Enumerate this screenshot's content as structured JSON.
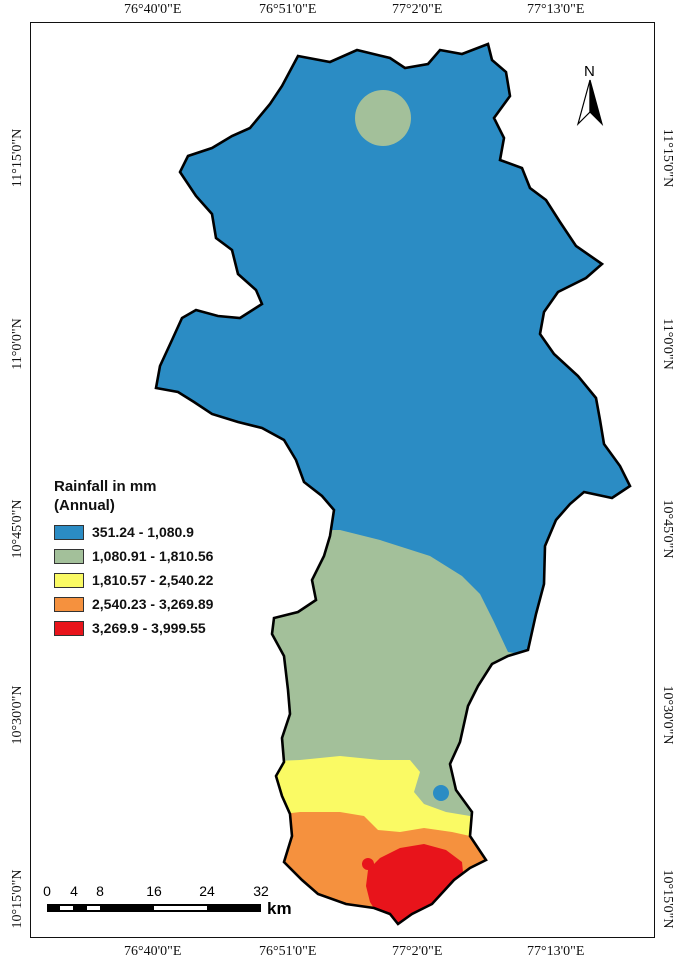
{
  "coordinates": {
    "top": [
      "76°40'0\"E",
      "76°51'0\"E",
      "77°2'0\"E",
      "77°13'0\"E"
    ],
    "bottom": [
      "76°40'0\"E",
      "76°51'0\"E",
      "77°2'0\"E",
      "77°13'0\"E"
    ],
    "left": [
      "11°15'0\"N",
      "11°0'0\"N",
      "10°45'0\"N",
      "10°30'0\"N",
      "10°15'0\"N"
    ],
    "right": [
      "11°15'0\"N",
      "11°0'0\"N",
      "10°45'0\"N",
      "10°30'0\"N",
      "10°15'0\"N"
    ]
  },
  "north_arrow": {
    "label": "N"
  },
  "legend": {
    "title_line1": "Rainfall in mm",
    "title_line2": "(Annual)",
    "items": [
      {
        "label": "351.24 - 1,080.9",
        "color": "#2b8cc4"
      },
      {
        "label": "1,080.91 - 1,810.56",
        "color": "#a3c09a"
      },
      {
        "label": "1,810.57 - 2,540.22",
        "color": "#fafa64"
      },
      {
        "label": "2,540.23 - 3,269.89",
        "color": "#f5913e"
      },
      {
        "label": "3,269.9 - 3,999.55",
        "color": "#e8141b"
      }
    ]
  },
  "scale_bar": {
    "ticks": [
      "0",
      "4",
      "8",
      "16",
      "24",
      "32"
    ],
    "unit": "km"
  }
}
